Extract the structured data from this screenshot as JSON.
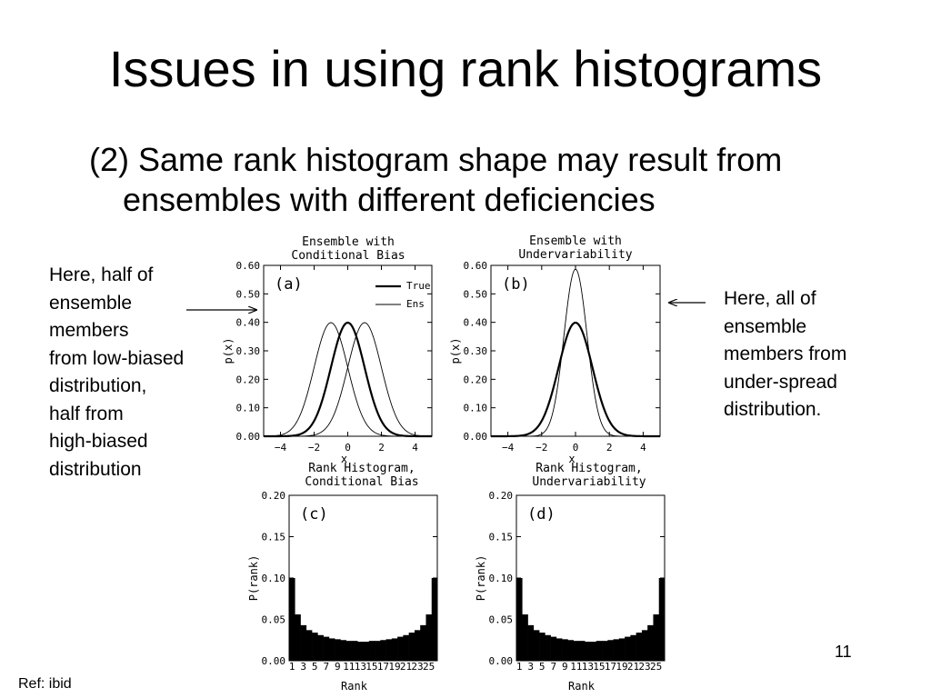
{
  "slide": {
    "title": "Issues in using rank histograms",
    "subtitle_line1": "(2) Same rank histogram shape may result from",
    "subtitle_line2": "ensembles with different deficiencies",
    "note_left": [
      "Here, half of",
      "ensemble",
      "members",
      "from low-biased",
      "distribution,",
      "half from",
      "high-biased",
      "distribution"
    ],
    "note_right": [
      "Here, all of",
      "ensemble",
      "members from",
      "under-spread",
      "distribution."
    ],
    "page_number": "11",
    "ref": "Ref: ibid"
  },
  "chart_data": [
    {
      "type": "line",
      "panel_label": "(a)",
      "title": [
        "Ensemble with",
        "Conditional Bias"
      ],
      "xlabel": "x",
      "ylabel": "p(x)",
      "xlim": [
        -5,
        5
      ],
      "ylim": [
        0,
        0.6
      ],
      "xticks": [
        -4,
        -2,
        0,
        2,
        4
      ],
      "xtick_labels": [
        "−4",
        "−2",
        "0",
        "2",
        "4"
      ],
      "yticks": [
        "0.00",
        "0.10",
        "0.20",
        "0.30",
        "0.40",
        "0.50",
        "0.60"
      ],
      "legend": [
        "True",
        "Ens"
      ],
      "series": [
        {
          "name": "True",
          "mean": 0,
          "sd": 1,
          "weight": 1,
          "style": "thick"
        },
        {
          "name": "Ens",
          "components": [
            {
              "mean": -1,
              "sd": 1
            },
            {
              "mean": 1,
              "sd": 1
            }
          ],
          "style": "thin"
        }
      ]
    },
    {
      "type": "line",
      "panel_label": "(b)",
      "title": [
        "Ensemble with",
        "Undervariability"
      ],
      "xlabel": "x",
      "ylabel": "p(x)",
      "xlim": [
        -5,
        5
      ],
      "ylim": [
        0,
        0.6
      ],
      "xticks": [
        -4,
        -2,
        0,
        2,
        4
      ],
      "xtick_labels": [
        "−4",
        "−2",
        "0",
        "2",
        "4"
      ],
      "yticks": [
        "0.00",
        "0.10",
        "0.20",
        "0.30",
        "0.40",
        "0.50",
        "0.60"
      ],
      "series": [
        {
          "mean": 0,
          "sd": 1,
          "style": "thick"
        },
        {
          "mean": 0,
          "sd": 0.68,
          "style": "thin"
        }
      ]
    },
    {
      "type": "bar",
      "panel_label": "(c)",
      "title": [
        "Rank Histogram,",
        "Conditional Bias"
      ],
      "xlabel": "Rank",
      "ylabel": "P(rank)",
      "ylim": [
        0,
        0.2
      ],
      "yticks": [
        "0.00",
        "0.05",
        "0.10",
        "0.15",
        "0.20"
      ],
      "xtick_labels": [
        "1",
        "3",
        "5",
        "7",
        "9",
        "11",
        "13",
        "15",
        "17",
        "19",
        "21",
        "23",
        "25"
      ],
      "values": [
        0.1,
        0.056,
        0.043,
        0.037,
        0.034,
        0.031,
        0.029,
        0.027,
        0.026,
        0.025,
        0.024,
        0.024,
        0.023,
        0.023,
        0.024,
        0.024,
        0.025,
        0.026,
        0.027,
        0.029,
        0.031,
        0.034,
        0.037,
        0.043,
        0.056,
        0.1
      ]
    },
    {
      "type": "bar",
      "panel_label": "(d)",
      "title": [
        "Rank Histogram,",
        "Undervariability"
      ],
      "xlabel": "Rank",
      "ylabel": "P(rank)",
      "ylim": [
        0,
        0.2
      ],
      "yticks": [
        "0.00",
        "0.05",
        "0.10",
        "0.15",
        "0.20"
      ],
      "xtick_labels": [
        "1",
        "3",
        "5",
        "7",
        "9",
        "11",
        "13",
        "15",
        "17",
        "19",
        "21",
        "23",
        "25"
      ],
      "values": [
        0.1,
        0.056,
        0.043,
        0.037,
        0.034,
        0.031,
        0.029,
        0.027,
        0.026,
        0.025,
        0.024,
        0.024,
        0.023,
        0.023,
        0.024,
        0.024,
        0.025,
        0.026,
        0.027,
        0.029,
        0.031,
        0.034,
        0.037,
        0.043,
        0.056,
        0.1
      ]
    }
  ]
}
